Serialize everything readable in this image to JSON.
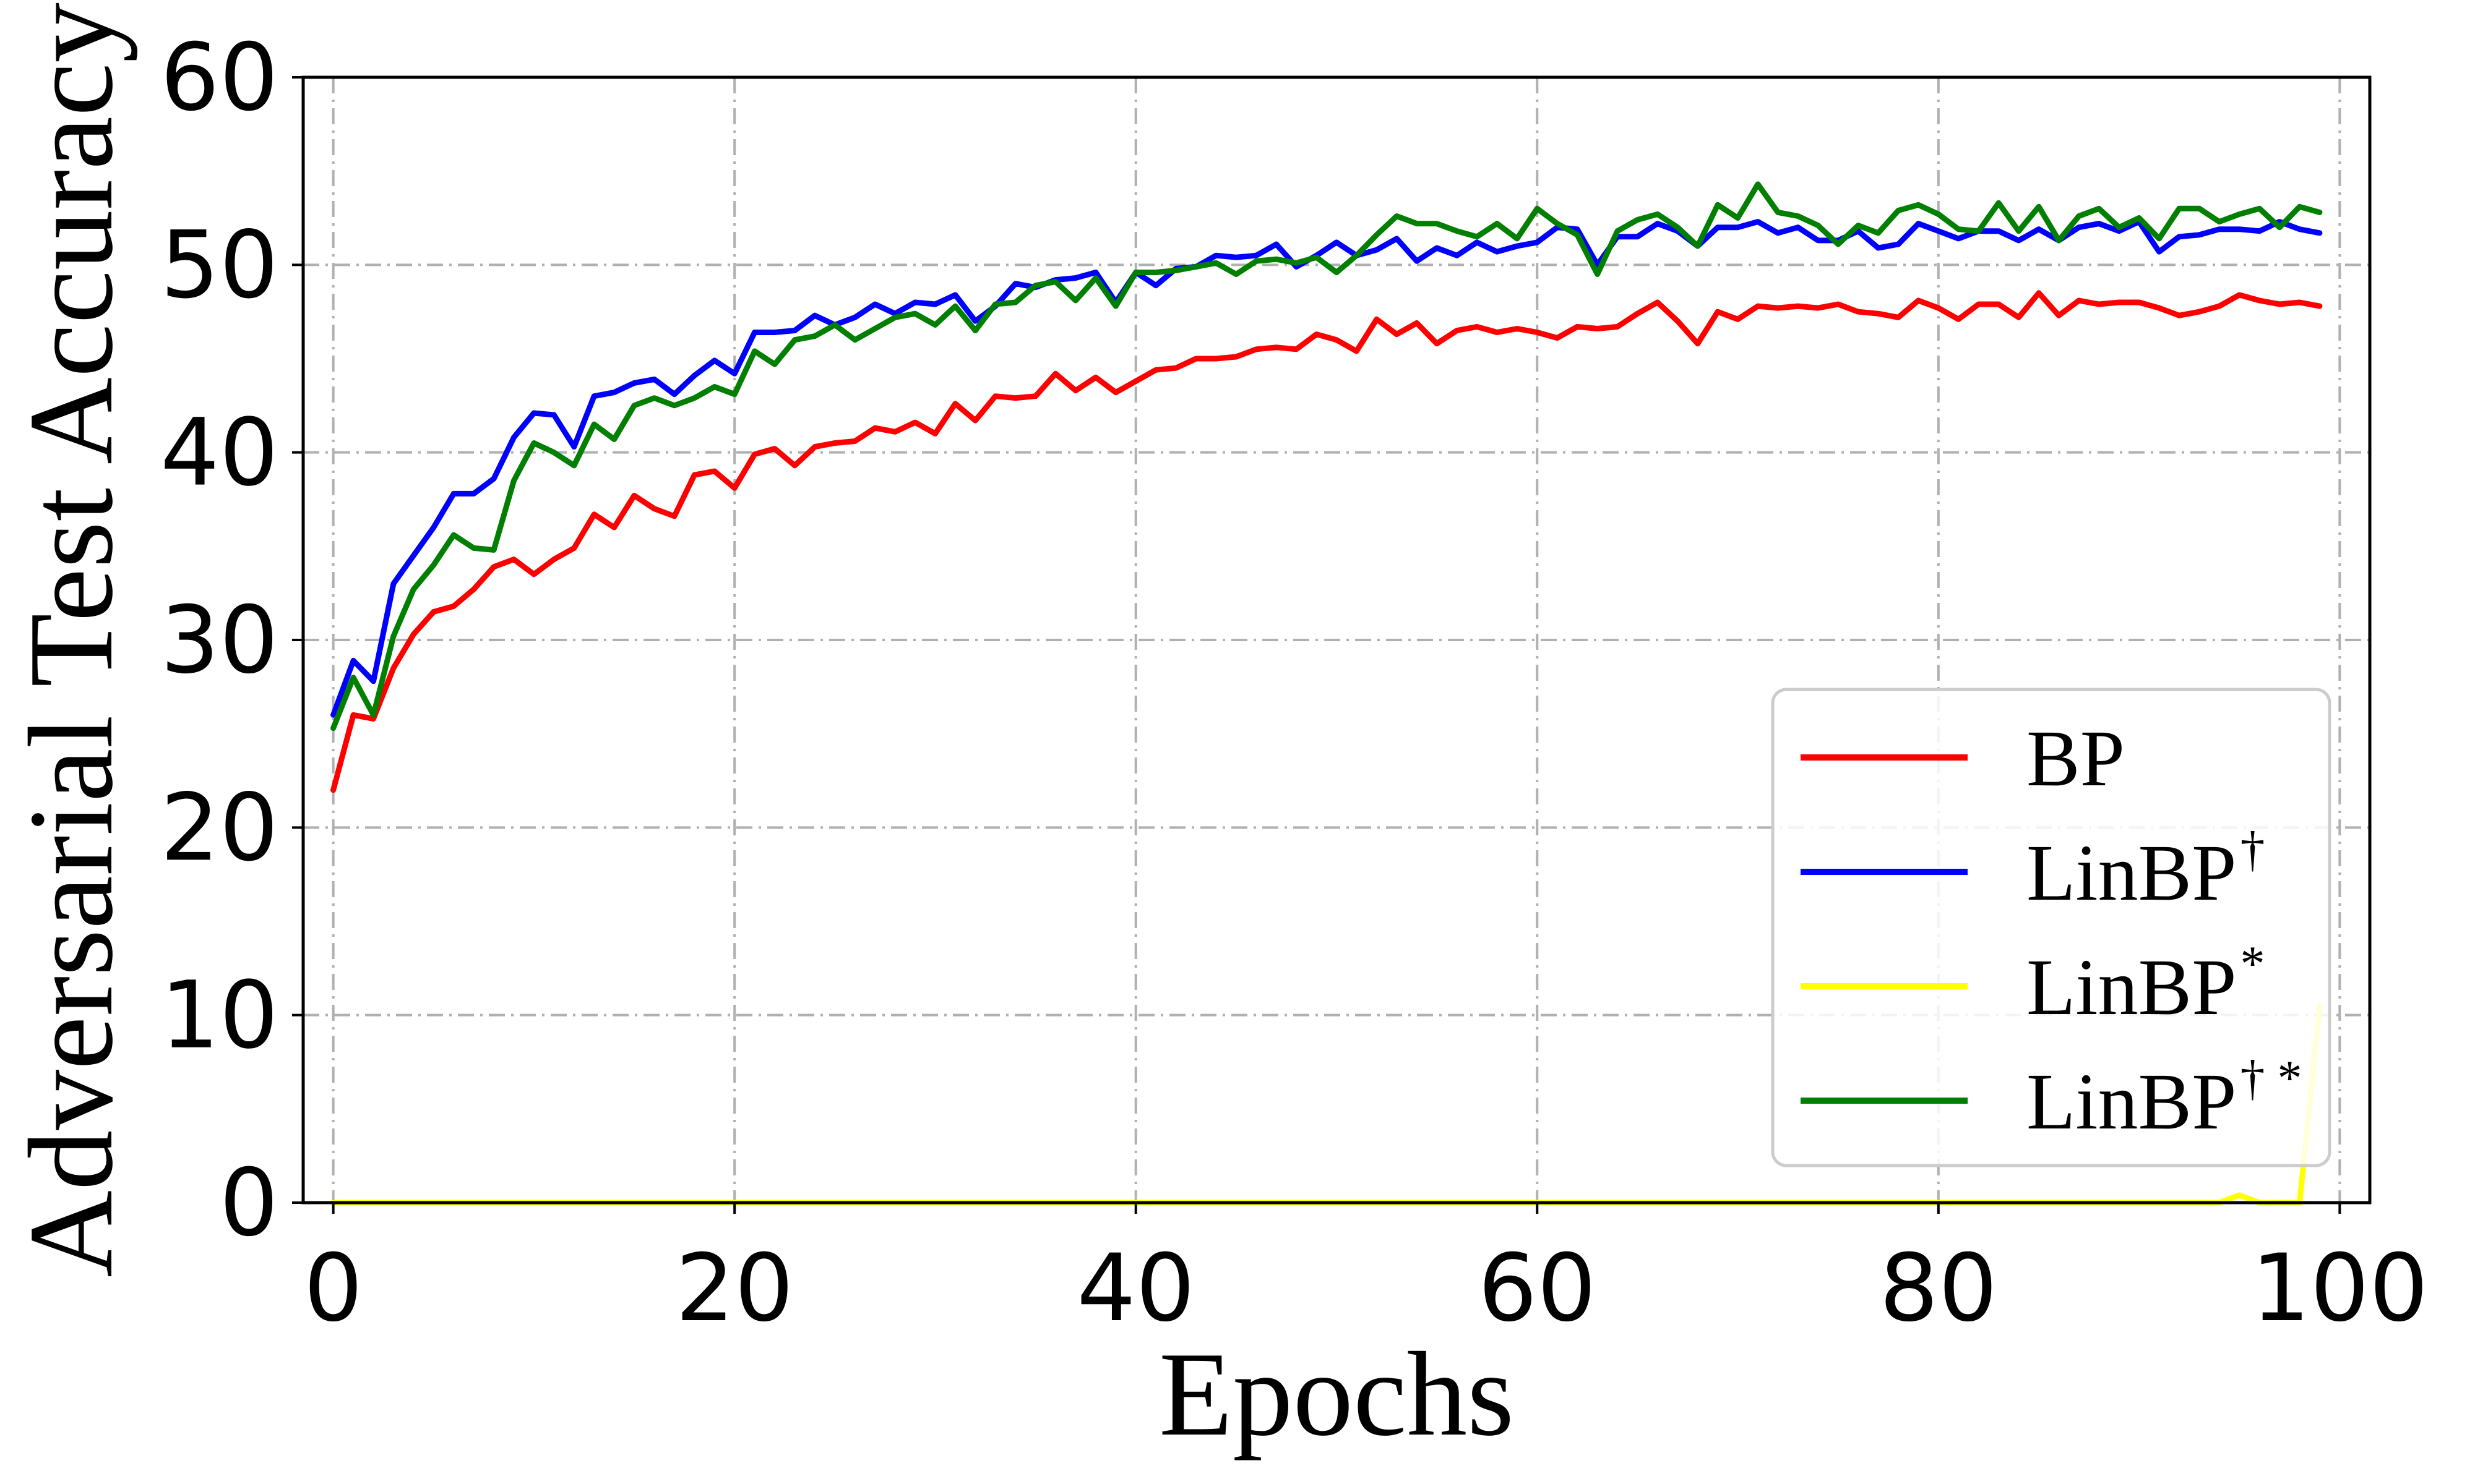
{
  "chart_data": {
    "type": "line",
    "xlabel": "Epochs",
    "ylabel": "Adversarial Test Accuracy",
    "xlim": [
      -1.5,
      101.5
    ],
    "ylim": [
      0,
      60
    ],
    "xticks": [
      "0",
      "20",
      "40",
      "60",
      "80",
      "100"
    ],
    "yticks": [
      "0",
      "10",
      "20",
      "30",
      "40",
      "50",
      "60"
    ],
    "grid": true,
    "legend_position": "lower-right",
    "x": [
      0,
      1,
      2,
      3,
      4,
      5,
      6,
      7,
      8,
      9,
      10,
      11,
      12,
      13,
      14,
      15,
      16,
      17,
      18,
      19,
      20,
      21,
      22,
      23,
      24,
      25,
      26,
      27,
      28,
      29,
      30,
      31,
      32,
      33,
      34,
      35,
      36,
      37,
      38,
      39,
      40,
      41,
      42,
      43,
      44,
      45,
      46,
      47,
      48,
      49,
      50,
      51,
      52,
      53,
      54,
      55,
      56,
      57,
      58,
      59,
      60,
      61,
      62,
      63,
      64,
      65,
      66,
      67,
      68,
      69,
      70,
      71,
      72,
      73,
      74,
      75,
      76,
      77,
      78,
      79,
      80,
      81,
      82,
      83,
      84,
      85,
      86,
      87,
      88,
      89,
      90,
      91,
      92,
      93,
      94,
      95,
      96,
      97,
      98,
      99
    ],
    "series": [
      {
        "name": "BP",
        "legend_base": "BP",
        "legend_sup": "",
        "color": "#ff0000",
        "values": [
          22.0,
          26.0,
          25.8,
          28.5,
          30.3,
          31.5,
          31.8,
          32.7,
          33.9,
          34.3,
          33.5,
          34.3,
          34.9,
          36.7,
          36.0,
          37.7,
          37.0,
          36.6,
          38.8,
          39.0,
          38.1,
          39.9,
          40.2,
          39.3,
          40.3,
          40.5,
          40.6,
          41.3,
          41.1,
          41.6,
          41.0,
          42.6,
          41.7,
          43.0,
          42.9,
          43.0,
          44.2,
          43.3,
          44.0,
          43.2,
          43.8,
          44.4,
          44.5,
          45.0,
          45.0,
          45.1,
          45.5,
          45.6,
          45.5,
          46.3,
          46.0,
          45.4,
          47.1,
          46.3,
          46.9,
          45.8,
          46.5,
          46.7,
          46.4,
          46.6,
          46.4,
          46.1,
          46.7,
          46.6,
          46.7,
          47.4,
          48.0,
          47.0,
          45.8,
          47.5,
          47.1,
          47.8,
          47.7,
          47.8,
          47.7,
          47.9,
          47.5,
          47.4,
          47.2,
          48.1,
          47.7,
          47.1,
          47.9,
          47.9,
          47.2,
          48.5,
          47.3,
          48.1,
          47.9,
          48.0,
          48.0,
          47.7,
          47.3,
          47.5,
          47.8,
          48.4,
          48.1,
          47.9,
          48.0,
          47.8
        ]
      },
      {
        "name": "LinBP†",
        "legend_base": "LinBP",
        "legend_sup": "†",
        "color": "#0000ff",
        "values": [
          26.0,
          28.9,
          27.8,
          33.0,
          34.5,
          36.0,
          37.8,
          37.8,
          38.6,
          40.8,
          42.1,
          42.0,
          40.3,
          43.0,
          43.2,
          43.7,
          43.9,
          43.1,
          44.1,
          44.9,
          44.2,
          46.4,
          46.4,
          46.5,
          47.3,
          46.8,
          47.2,
          47.9,
          47.4,
          48.0,
          47.9,
          48.4,
          47.0,
          47.8,
          49.0,
          48.8,
          49.2,
          49.3,
          49.6,
          48.0,
          49.6,
          48.9,
          49.8,
          49.9,
          50.5,
          50.4,
          50.5,
          51.1,
          49.9,
          50.5,
          51.2,
          50.5,
          50.8,
          51.4,
          50.2,
          50.9,
          50.5,
          51.2,
          50.7,
          51.0,
          51.2,
          52.0,
          51.9,
          50.0,
          51.5,
          51.5,
          52.2,
          51.8,
          51.0,
          52.0,
          52.0,
          52.3,
          51.7,
          52.0,
          51.3,
          51.3,
          51.8,
          50.9,
          51.1,
          52.2,
          51.8,
          51.4,
          51.8,
          51.8,
          51.3,
          51.9,
          51.3,
          52.0,
          52.2,
          51.8,
          52.3,
          50.7,
          51.5,
          51.6,
          51.9,
          51.9,
          51.8,
          52.3,
          51.9,
          51.7
        ]
      },
      {
        "name": "LinBP*",
        "legend_base": "LinBP",
        "legend_sup": "*",
        "color": "#ffff00",
        "values": [
          0,
          0,
          0,
          0,
          0,
          0,
          0,
          0,
          0,
          0,
          0,
          0,
          0,
          0,
          0,
          0,
          0,
          0,
          0,
          0,
          0,
          0,
          0,
          0,
          0,
          0,
          0,
          0,
          0,
          0,
          0,
          0,
          0,
          0,
          0,
          0,
          0,
          0,
          0,
          0,
          0,
          0,
          0,
          0,
          0,
          0,
          0,
          0,
          0,
          0,
          0,
          0,
          0,
          0,
          0,
          0,
          0,
          0,
          0,
          0,
          0,
          0,
          0,
          0,
          0,
          0,
          0,
          0,
          0,
          0,
          0,
          0,
          0,
          0,
          0,
          0,
          0,
          0,
          0,
          0,
          0,
          0,
          0,
          0,
          0,
          0,
          0,
          0,
          0,
          0,
          0,
          0,
          0,
          0,
          0,
          0.4,
          0,
          0,
          0,
          10.5
        ]
      },
      {
        "name": "LinBP†*",
        "legend_base": "LinBP",
        "legend_sup": "† *",
        "color": "#007f00",
        "values": [
          25.3,
          28.0,
          26.0,
          30.2,
          32.7,
          34.0,
          35.6,
          34.9,
          34.8,
          38.5,
          40.5,
          40.0,
          39.3,
          41.5,
          40.7,
          42.5,
          42.9,
          42.5,
          42.9,
          43.5,
          43.1,
          45.4,
          44.7,
          46.0,
          46.2,
          46.8,
          46.0,
          46.6,
          47.2,
          47.4,
          46.8,
          47.8,
          46.5,
          47.9,
          48.0,
          48.9,
          49.1,
          48.1,
          49.3,
          47.8,
          49.6,
          49.6,
          49.7,
          49.9,
          50.1,
          49.5,
          50.2,
          50.3,
          50.1,
          50.4,
          49.6,
          50.5,
          51.6,
          52.6,
          52.2,
          52.2,
          51.8,
          51.5,
          52.2,
          51.4,
          53.0,
          52.2,
          51.6,
          49.5,
          51.8,
          52.4,
          52.7,
          52.0,
          51.0,
          53.2,
          52.5,
          54.3,
          52.8,
          52.6,
          52.1,
          51.1,
          52.1,
          51.7,
          52.9,
          53.2,
          52.7,
          51.9,
          51.8,
          53.3,
          51.8,
          53.1,
          51.3,
          52.6,
          53.0,
          52.0,
          52.5,
          51.4,
          53.0,
          53.0,
          52.3,
          52.7,
          53.0,
          52.0,
          53.1,
          52.8
        ]
      }
    ]
  }
}
